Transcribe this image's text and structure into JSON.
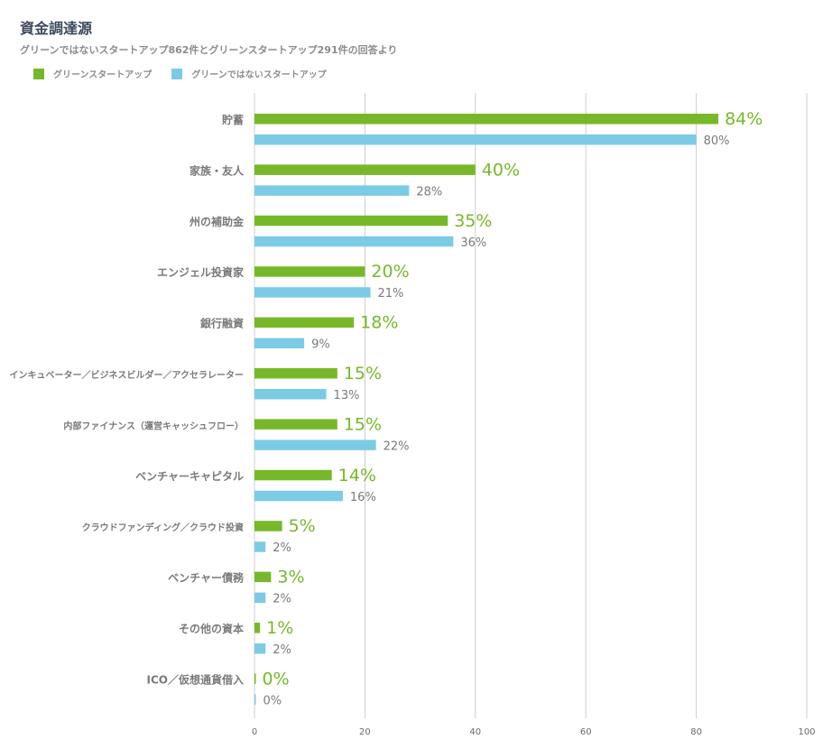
{
  "colors": {
    "green": "#77b82a",
    "blue": "#7ccbe5",
    "grid": "#cccccc"
  },
  "chart_data": {
    "type": "bar",
    "orientation": "horizontal",
    "title": "資金調達源",
    "subtitle": "グリーンではないスタートアップ862件とグリーンスタートアップ291件の回答より",
    "legend_position": "top-left",
    "grid": true,
    "xlim": [
      0,
      100
    ],
    "xticks": [
      "0",
      "20",
      "40",
      "60",
      "80",
      "100"
    ],
    "categories": [
      "貯蓄",
      "家族・友人",
      "州の補助金",
      "エンジェル投資家",
      "銀行融資",
      "インキュベーター／ビジネスビルダー／アクセラレーター",
      "内部ファイナンス（運営キャッシュフロー）",
      "ベンチャーキャピタル",
      "クラウドファンディング／クラウド投資",
      "ベンチャー債務",
      "その他の資本",
      "ICO／仮想通貨借入"
    ],
    "series": [
      {
        "name": "グリーンスタートアップ",
        "values": [
          84,
          40,
          35,
          20,
          18,
          15,
          15,
          14,
          5,
          3,
          1,
          0
        ],
        "labels": [
          "84%",
          "40%",
          "35%",
          "20%",
          "18%",
          "15%",
          "15%",
          "14%",
          "5%",
          "3%",
          "1%",
          "0%"
        ]
      },
      {
        "name": "グリーンではないスタートアップ",
        "values": [
          80,
          28,
          36,
          21,
          9,
          13,
          22,
          16,
          2,
          2,
          2,
          0
        ],
        "labels": [
          "80%",
          "28%",
          "36%",
          "21%",
          "9%",
          "13%",
          "22%",
          "16%",
          "2%",
          "2%",
          "2%",
          "0%"
        ]
      }
    ]
  }
}
